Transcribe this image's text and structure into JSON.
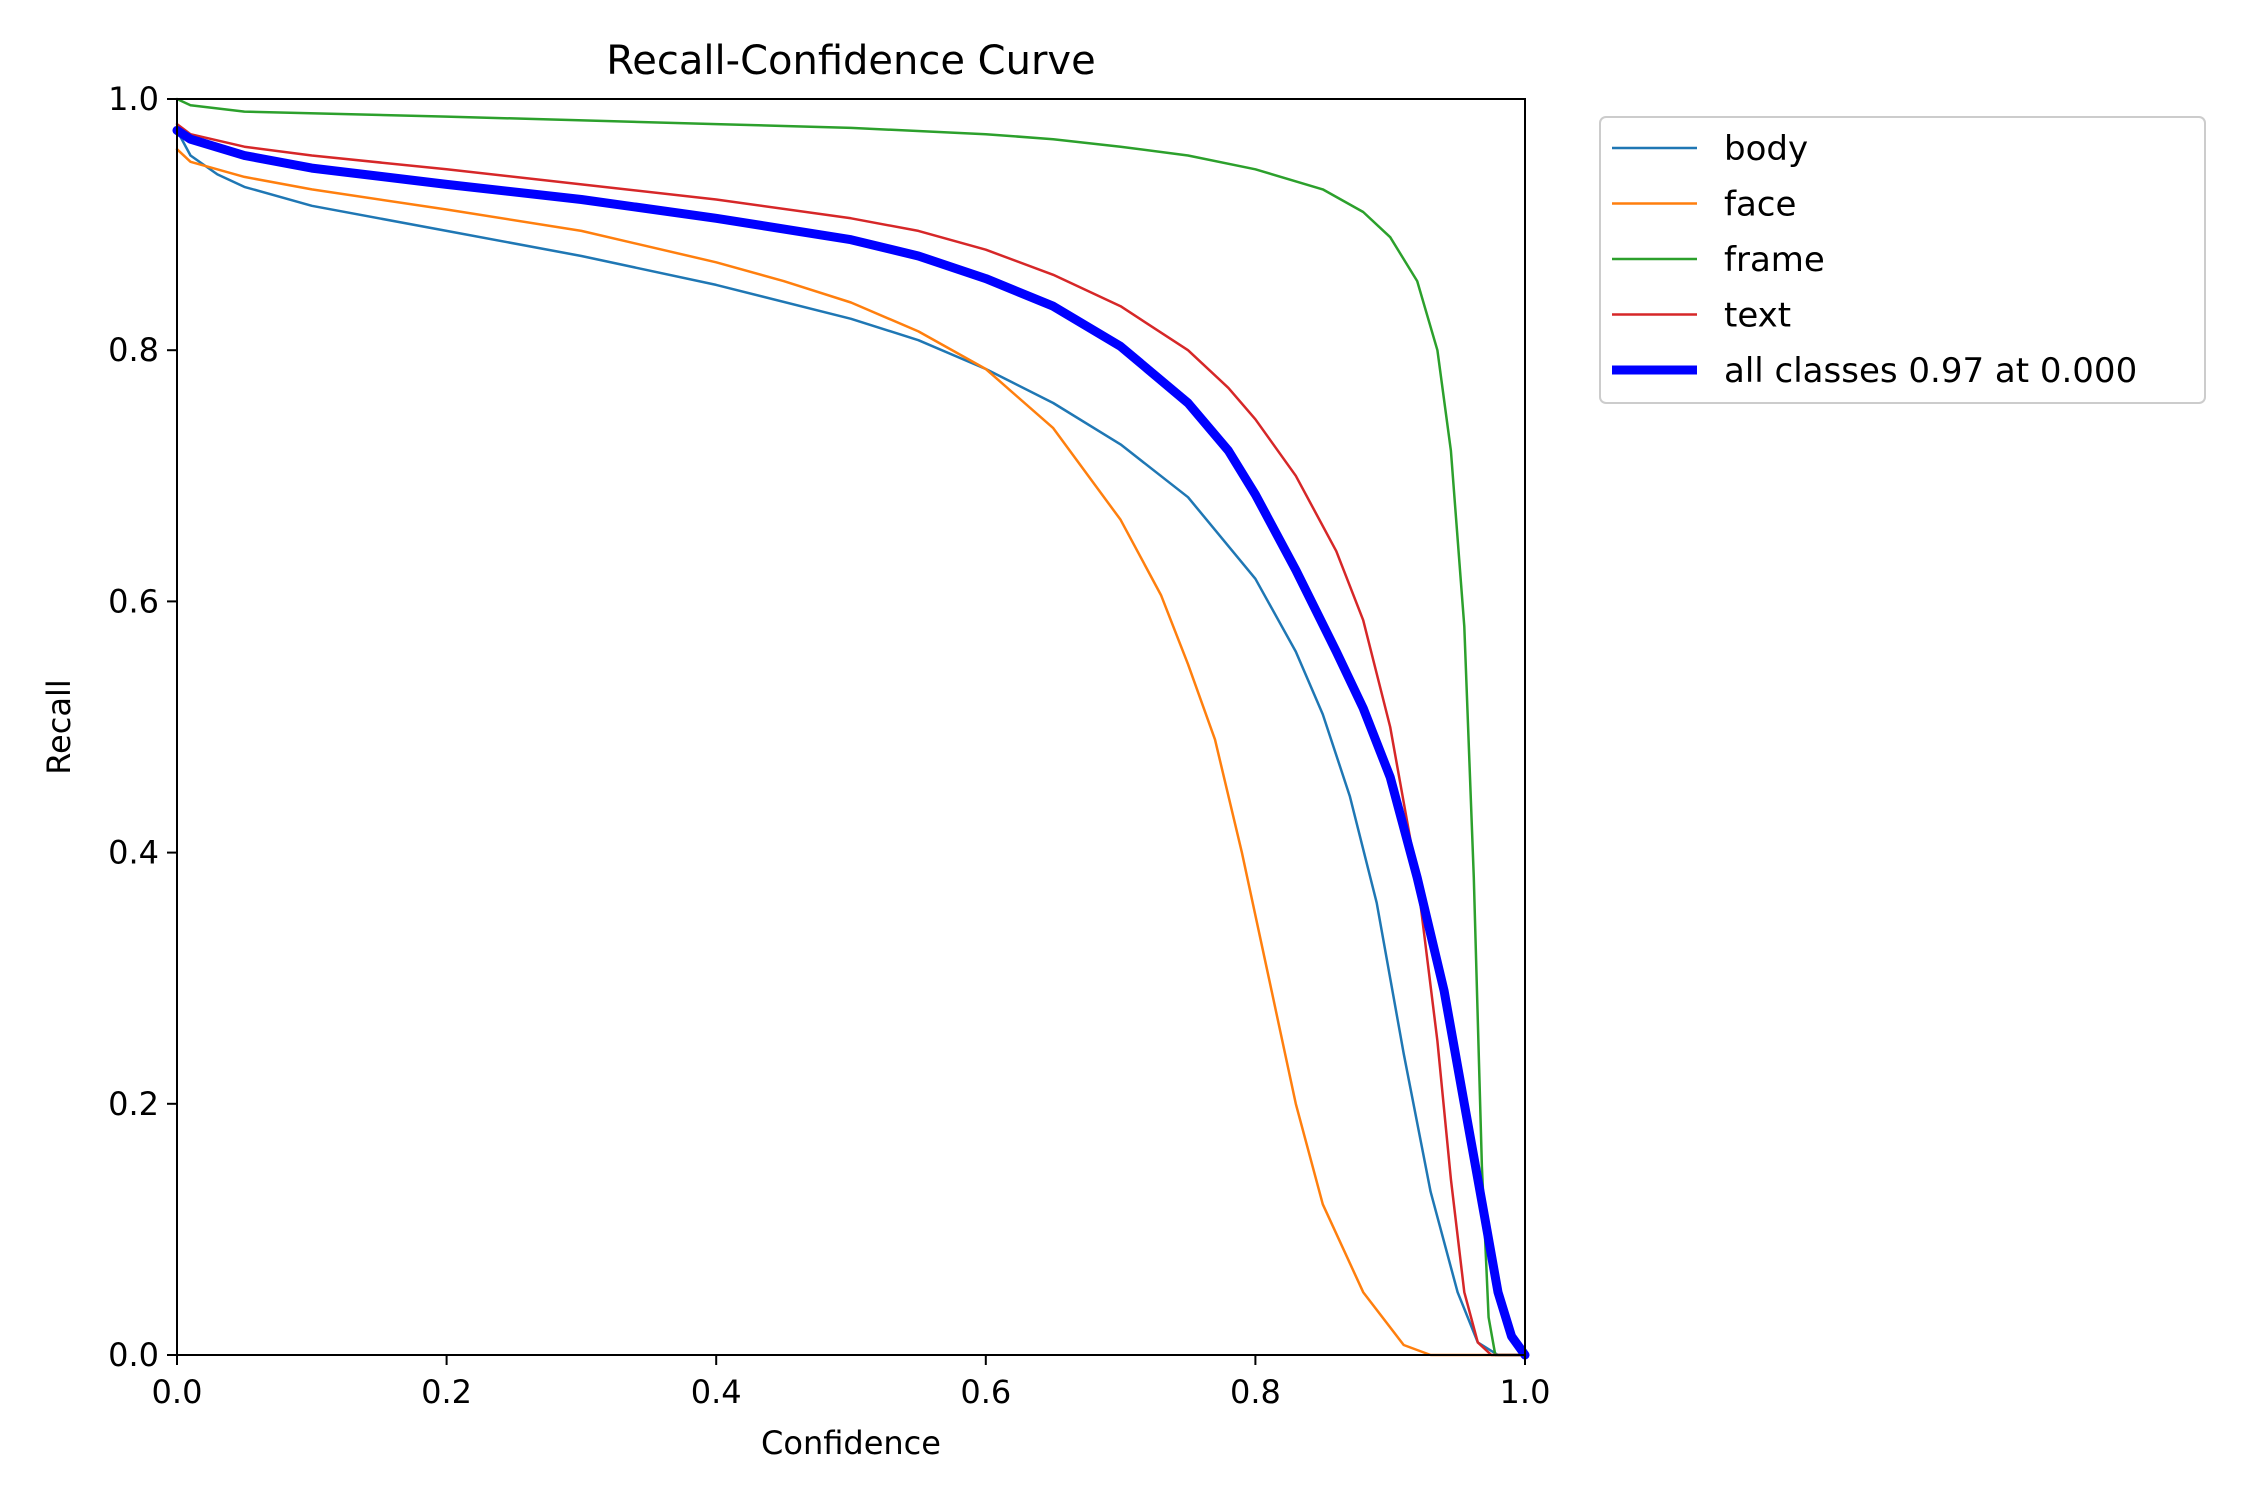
{
  "chart_data": {
    "type": "line",
    "title": "Recall-Confidence Curve",
    "xlabel": "Confidence",
    "ylabel": "Recall",
    "xlim": [
      0,
      1
    ],
    "ylim": [
      0,
      1
    ],
    "xticks": [
      "0.0",
      "0.2",
      "0.4",
      "0.6",
      "0.8",
      "1.0"
    ],
    "yticks": [
      "0.0",
      "0.2",
      "0.4",
      "0.6",
      "0.8",
      "1.0"
    ],
    "grid": false,
    "legend_position": "outside-top-right",
    "series": [
      {
        "name": "body",
        "color": "#1f77b4",
        "emphasis": false,
        "points": [
          [
            0.0,
            0.975
          ],
          [
            0.01,
            0.955
          ],
          [
            0.03,
            0.94
          ],
          [
            0.05,
            0.93
          ],
          [
            0.1,
            0.915
          ],
          [
            0.2,
            0.895
          ],
          [
            0.3,
            0.875
          ],
          [
            0.4,
            0.852
          ],
          [
            0.5,
            0.825
          ],
          [
            0.55,
            0.808
          ],
          [
            0.6,
            0.785
          ],
          [
            0.65,
            0.758
          ],
          [
            0.7,
            0.725
          ],
          [
            0.75,
            0.683
          ],
          [
            0.8,
            0.618
          ],
          [
            0.83,
            0.56
          ],
          [
            0.85,
            0.51
          ],
          [
            0.87,
            0.445
          ],
          [
            0.89,
            0.36
          ],
          [
            0.91,
            0.24
          ],
          [
            0.93,
            0.13
          ],
          [
            0.95,
            0.05
          ],
          [
            0.965,
            0.01
          ],
          [
            0.98,
            0.0
          ],
          [
            1.0,
            0.0
          ]
        ]
      },
      {
        "name": "face",
        "color": "#ff7f0e",
        "emphasis": false,
        "points": [
          [
            0.0,
            0.96
          ],
          [
            0.01,
            0.95
          ],
          [
            0.05,
            0.938
          ],
          [
            0.1,
            0.928
          ],
          [
            0.2,
            0.912
          ],
          [
            0.3,
            0.895
          ],
          [
            0.4,
            0.87
          ],
          [
            0.45,
            0.855
          ],
          [
            0.5,
            0.838
          ],
          [
            0.55,
            0.815
          ],
          [
            0.6,
            0.785
          ],
          [
            0.65,
            0.738
          ],
          [
            0.7,
            0.665
          ],
          [
            0.73,
            0.605
          ],
          [
            0.75,
            0.55
          ],
          [
            0.77,
            0.49
          ],
          [
            0.79,
            0.4
          ],
          [
            0.81,
            0.3
          ],
          [
            0.83,
            0.2
          ],
          [
            0.85,
            0.12
          ],
          [
            0.88,
            0.05
          ],
          [
            0.91,
            0.008
          ],
          [
            0.93,
            0.0
          ],
          [
            1.0,
            0.0
          ]
        ]
      },
      {
        "name": "frame",
        "color": "#2ca02c",
        "emphasis": false,
        "points": [
          [
            0.0,
            1.0
          ],
          [
            0.01,
            0.995
          ],
          [
            0.05,
            0.99
          ],
          [
            0.2,
            0.986
          ],
          [
            0.4,
            0.98
          ],
          [
            0.5,
            0.977
          ],
          [
            0.6,
            0.972
          ],
          [
            0.65,
            0.968
          ],
          [
            0.7,
            0.962
          ],
          [
            0.75,
            0.955
          ],
          [
            0.8,
            0.944
          ],
          [
            0.85,
            0.928
          ],
          [
            0.88,
            0.91
          ],
          [
            0.9,
            0.89
          ],
          [
            0.92,
            0.855
          ],
          [
            0.935,
            0.8
          ],
          [
            0.945,
            0.72
          ],
          [
            0.955,
            0.58
          ],
          [
            0.962,
            0.38
          ],
          [
            0.968,
            0.15
          ],
          [
            0.973,
            0.03
          ],
          [
            0.978,
            0.0
          ],
          [
            1.0,
            0.0
          ]
        ]
      },
      {
        "name": "text",
        "color": "#d62728",
        "emphasis": false,
        "points": [
          [
            0.0,
            0.98
          ],
          [
            0.01,
            0.972
          ],
          [
            0.05,
            0.962
          ],
          [
            0.1,
            0.955
          ],
          [
            0.2,
            0.944
          ],
          [
            0.3,
            0.932
          ],
          [
            0.4,
            0.92
          ],
          [
            0.5,
            0.905
          ],
          [
            0.55,
            0.895
          ],
          [
            0.6,
            0.88
          ],
          [
            0.65,
            0.86
          ],
          [
            0.7,
            0.835
          ],
          [
            0.75,
            0.8
          ],
          [
            0.78,
            0.77
          ],
          [
            0.8,
            0.745
          ],
          [
            0.83,
            0.7
          ],
          [
            0.86,
            0.64
          ],
          [
            0.88,
            0.585
          ],
          [
            0.9,
            0.5
          ],
          [
            0.92,
            0.38
          ],
          [
            0.935,
            0.25
          ],
          [
            0.945,
            0.14
          ],
          [
            0.955,
            0.05
          ],
          [
            0.965,
            0.01
          ],
          [
            0.975,
            0.0
          ],
          [
            1.0,
            0.0
          ]
        ]
      },
      {
        "name": "all classes 0.97 at 0.000",
        "color": "#0000ff",
        "emphasis": true,
        "points": [
          [
            0.0,
            0.975
          ],
          [
            0.01,
            0.968
          ],
          [
            0.05,
            0.955
          ],
          [
            0.1,
            0.945
          ],
          [
            0.2,
            0.932
          ],
          [
            0.3,
            0.92
          ],
          [
            0.4,
            0.905
          ],
          [
            0.5,
            0.888
          ],
          [
            0.55,
            0.875
          ],
          [
            0.6,
            0.857
          ],
          [
            0.65,
            0.835
          ],
          [
            0.7,
            0.803
          ],
          [
            0.75,
            0.758
          ],
          [
            0.78,
            0.72
          ],
          [
            0.8,
            0.685
          ],
          [
            0.83,
            0.625
          ],
          [
            0.86,
            0.56
          ],
          [
            0.88,
            0.515
          ],
          [
            0.9,
            0.46
          ],
          [
            0.92,
            0.38
          ],
          [
            0.94,
            0.29
          ],
          [
            0.955,
            0.2
          ],
          [
            0.97,
            0.11
          ],
          [
            0.98,
            0.05
          ],
          [
            0.99,
            0.015
          ],
          [
            1.0,
            0.0
          ]
        ]
      }
    ]
  }
}
